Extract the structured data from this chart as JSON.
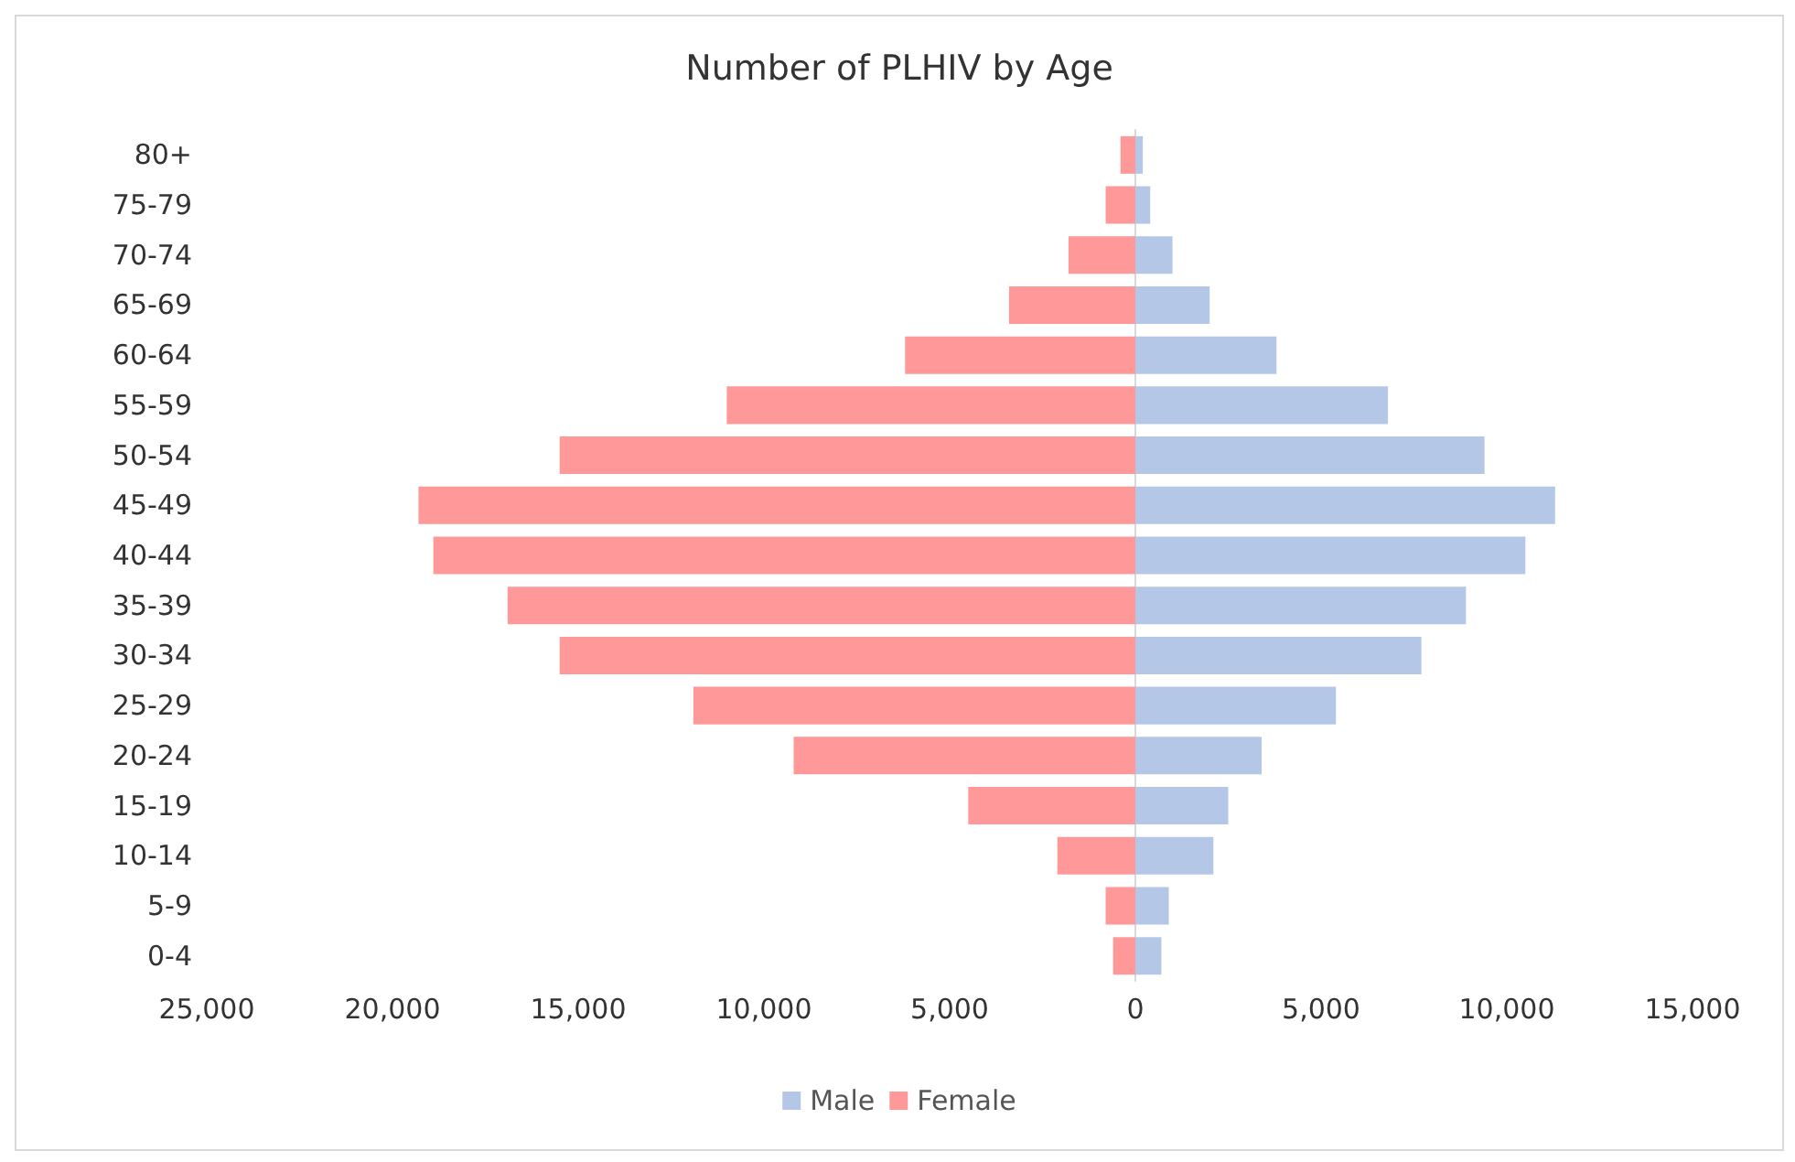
{
  "chart_data": {
    "type": "bar",
    "orientation": "horizontal",
    "stacked": true,
    "title": "Number of PLHIV by Age",
    "categories": [
      "80+",
      "75-79",
      "70-74",
      "65-69",
      "60-64",
      "55-59",
      "50-54",
      "45-49",
      "40-44",
      "35-39",
      "30-34",
      "25-29",
      "20-24",
      "15-19",
      "10-14",
      "5-9",
      "0-4"
    ],
    "series": [
      {
        "name": "Male",
        "color": "#b4c7e7",
        "values": [
          200,
          400,
          1000,
          2000,
          3800,
          6800,
          9400,
          11300,
          10500,
          8900,
          7700,
          5400,
          3400,
          2500,
          2100,
          900,
          700
        ]
      },
      {
        "name": "Female",
        "color": "#ff9999",
        "values": [
          -400,
          -800,
          -1800,
          -3400,
          -6200,
          -11000,
          -15500,
          -19300,
          -18900,
          -16900,
          -15500,
          -11900,
          -9200,
          -4500,
          -2100,
          -800,
          -600
        ]
      }
    ],
    "xlim": [
      -25000,
      15000
    ],
    "xticks": [
      {
        "value": -25000,
        "label": "25,000"
      },
      {
        "value": -20000,
        "label": "20,000"
      },
      {
        "value": -15000,
        "label": "15,000"
      },
      {
        "value": -10000,
        "label": "10,000"
      },
      {
        "value": -5000,
        "label": "5,000"
      },
      0,
      {
        "value": 5000,
        "label": "5,000"
      },
      {
        "value": 10000,
        "label": "10,000"
      },
      {
        "value": 15000,
        "label": "15,000"
      }
    ],
    "legend": "bottom"
  }
}
